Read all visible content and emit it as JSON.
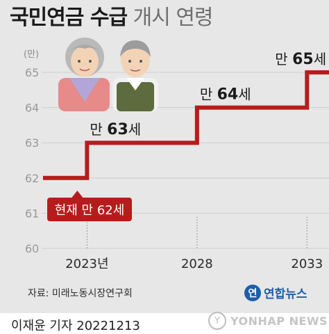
{
  "title": {
    "bold": "국민연금 수급",
    "light": "개시 연령"
  },
  "unit_label": "(만)",
  "source": "자료: 미래노동시장연구회",
  "logo": {
    "mark": "연",
    "name": "연합뉴스"
  },
  "byline": "이재윤 기자 20221213",
  "watermark": {
    "mark": "Y",
    "text": "YONHAP NEWS"
  },
  "colors": {
    "line": "#b71c1c",
    "background": "#e7e7e7",
    "badge": "#b71c1c",
    "grid": "#cfcfcf"
  },
  "illustration": [
    "grandmother-icon",
    "grandfather-icon"
  ],
  "chart_data": {
    "type": "line",
    "ylim": [
      60,
      65
    ],
    "yticks": [
      "60",
      "61",
      "62",
      "63",
      "64",
      "65"
    ],
    "xticks": [
      {
        "label": "2023년",
        "x": 2023
      },
      {
        "label": "2028",
        "x": 2028
      },
      {
        "label": "2033",
        "x": 2033
      }
    ],
    "xlim": [
      2021,
      2034
    ],
    "series": [
      {
        "steps": [
          {
            "x_start": 2021,
            "x_end": 2023,
            "y": 62
          },
          {
            "x_start": 2023,
            "x_end": 2028,
            "y": 63
          },
          {
            "x_start": 2028,
            "x_end": 2033,
            "y": 64
          },
          {
            "x_start": 2033,
            "x_end": 2034,
            "y": 65
          }
        ]
      }
    ],
    "annotations": [
      {
        "prefix": "현재 만 ",
        "value": "62",
        "suffix": "세",
        "x": 2023,
        "y": 62,
        "style": "badge"
      },
      {
        "prefix": "만 ",
        "value": "63",
        "suffix": "세",
        "x": 2023,
        "y": 63,
        "style": "label"
      },
      {
        "prefix": "만 ",
        "value": "64",
        "suffix": "세",
        "x": 2028,
        "y": 64,
        "style": "label"
      },
      {
        "prefix": "만 ",
        "value": "65",
        "suffix": "세",
        "x": 2033,
        "y": 65,
        "style": "label"
      }
    ]
  }
}
